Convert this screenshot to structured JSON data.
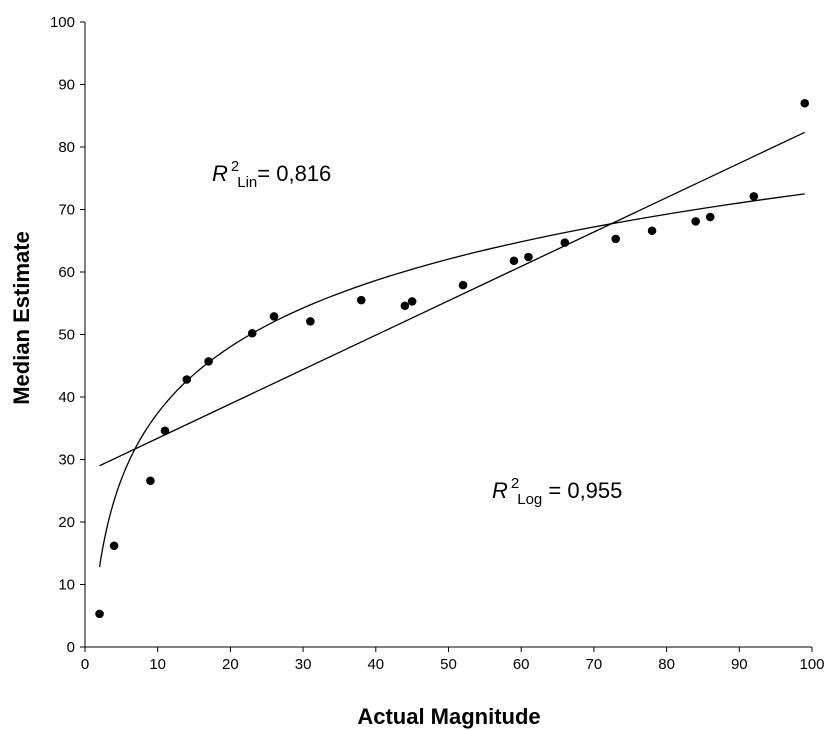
{
  "chart_data": {
    "type": "scatter",
    "xlabel": "Actual Magnitude",
    "ylabel": "Median Estimate",
    "xlim": [
      0,
      100
    ],
    "ylim": [
      0,
      100
    ],
    "xticks": [
      "0",
      "10",
      "20",
      "30",
      "40",
      "50",
      "60",
      "70",
      "80",
      "90",
      "100"
    ],
    "yticks": [
      "0",
      "10",
      "20",
      "30",
      "40",
      "50",
      "60",
      "70",
      "80",
      "90",
      "100"
    ],
    "grid": false,
    "points": {
      "x": [
        2,
        4,
        9,
        11,
        14,
        17,
        23,
        26,
        31,
        38,
        44,
        45,
        52,
        59,
        61,
        66,
        73,
        78,
        84,
        86,
        92,
        99
      ],
      "y": [
        5.3,
        16.2,
        26.6,
        34.6,
        42.8,
        45.7,
        50.2,
        52.9,
        52.1,
        55.5,
        54.6,
        55.3,
        57.9,
        61.8,
        62.4,
        64.7,
        65.3,
        66.6,
        68.1,
        68.8,
        72.1,
        87.0
      ]
    },
    "fits": [
      {
        "type": "linear",
        "x_range": [
          2,
          99
        ],
        "intercept": 27.9,
        "slope": 0.55
      },
      {
        "type": "logarithmic",
        "x_range": [
          2,
          99
        ],
        "intercept": 2.2,
        "coefficient": 15.3
      }
    ],
    "annotations": {
      "lin": {
        "r": "R",
        "sup": "2",
        "sub": "Lin",
        "text": "= 0,816"
      },
      "log": {
        "r": "R",
        "sup": "2",
        "sub": "Log",
        "text": " = 0,955"
      }
    },
    "colors": {
      "points": "#000000",
      "lines": "#000000",
      "axes": "#000000"
    }
  }
}
